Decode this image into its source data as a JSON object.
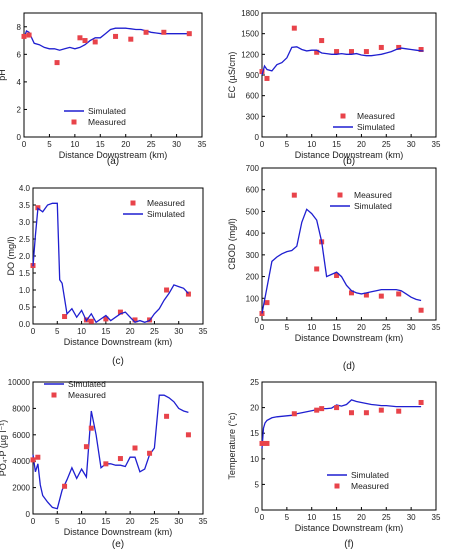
{
  "chart_data": [
    {
      "type": "line",
      "panel_label": "(a)",
      "xlabel": "Distance Downstream (km)",
      "ylabel": "pH",
      "xlim": [
        0,
        35
      ],
      "ylim": [
        0,
        9
      ],
      "xticks": [
        0,
        5,
        10,
        15,
        20,
        25,
        30,
        35
      ],
      "yticks": [
        0,
        2,
        4,
        6,
        8
      ],
      "legend_position": "bottom-left",
      "series": [
        {
          "name": "Simulated",
          "kind": "line",
          "x": [
            0,
            0.5,
            1,
            2,
            3,
            4,
            5,
            6,
            7,
            8,
            9,
            10,
            11,
            12,
            13,
            14,
            15,
            16,
            17,
            18,
            19,
            20,
            21,
            22,
            23,
            24,
            25,
            26,
            27,
            28,
            29,
            30,
            31,
            32,
            32.5
          ],
          "y": [
            7.2,
            7.7,
            7.6,
            6.8,
            6.7,
            6.5,
            6.4,
            6.4,
            6.3,
            6.4,
            6.5,
            6.4,
            6.5,
            6.7,
            7.0,
            7.2,
            7.2,
            7.5,
            7.8,
            7.9,
            7.9,
            7.9,
            7.85,
            7.8,
            7.8,
            7.7,
            7.6,
            7.55,
            7.5,
            7.5,
            7.5,
            7.5,
            7.5,
            7.5,
            7.5
          ]
        },
        {
          "name": "Measured",
          "kind": "marker",
          "x": [
            0,
            1,
            6.5,
            11,
            12,
            14,
            18,
            21,
            24,
            27.5,
            32.5
          ],
          "y": [
            7.3,
            7.4,
            5.4,
            7.2,
            7.0,
            6.9,
            7.3,
            7.1,
            7.6,
            7.6,
            7.5
          ]
        }
      ]
    },
    {
      "type": "line",
      "panel_label": "(b)",
      "xlabel": "Distance Downstream (km)",
      "ylabel": "EC (µS/cm)",
      "xlim": [
        0,
        35
      ],
      "ylim": [
        0,
        1800
      ],
      "xticks": [
        0,
        5,
        10,
        15,
        20,
        25,
        30,
        35
      ],
      "yticks": [
        0,
        300,
        600,
        900,
        1200,
        1500,
        1800
      ],
      "legend_position": "bottom",
      "series": [
        {
          "name": "Measured",
          "kind": "marker",
          "x": [
            0,
            1,
            6.5,
            11,
            12,
            15,
            18,
            21,
            24,
            27.5,
            32
          ],
          "y": [
            950,
            850,
            1580,
            1230,
            1400,
            1240,
            1240,
            1240,
            1300,
            1300,
            1270
          ]
        },
        {
          "name": "Simulated",
          "kind": "line",
          "x": [
            0,
            0.5,
            1,
            2,
            3,
            4,
            5,
            6,
            7,
            8,
            9,
            10,
            11,
            12,
            13,
            14,
            15,
            16,
            17,
            18,
            19,
            20,
            21,
            22,
            23,
            24,
            25,
            26,
            27,
            28,
            29,
            30,
            31,
            32,
            32.5
          ],
          "y": [
            900,
            1030,
            980,
            960,
            1050,
            1080,
            1150,
            1300,
            1310,
            1270,
            1250,
            1260,
            1260,
            1220,
            1210,
            1200,
            1200,
            1210,
            1200,
            1200,
            1210,
            1190,
            1180,
            1180,
            1190,
            1200,
            1220,
            1240,
            1270,
            1290,
            1280,
            1270,
            1260,
            1250,
            1250
          ]
        }
      ]
    },
    {
      "type": "line",
      "panel_label": "(c)",
      "xlabel": "Distance Downstream (km)",
      "ylabel": "DO (mg/l)",
      "xlim": [
        0,
        35
      ],
      "ylim": [
        0,
        4
      ],
      "xticks": [
        0,
        5,
        10,
        15,
        20,
        25,
        30,
        35
      ],
      "yticks": [
        0,
        0.5,
        1.0,
        1.5,
        2.0,
        2.5,
        3.0,
        3.5,
        4.0
      ],
      "ytick_labels": [
        "0.0",
        "0.5",
        "1.0",
        "1.5",
        "2.0",
        "2.5",
        "3.0",
        "3.5",
        "4.0"
      ],
      "legend_position": "top-right",
      "series": [
        {
          "name": "Measured",
          "kind": "marker",
          "x": [
            0,
            1,
            6.5,
            11,
            12,
            15,
            18,
            21,
            24,
            27.5,
            32
          ],
          "y": [
            1.72,
            3.42,
            0.22,
            0.12,
            0.08,
            0.15,
            0.35,
            0.12,
            0.12,
            1.0,
            0.88
          ]
        },
        {
          "name": "Simulated",
          "kind": "line",
          "x": [
            0,
            0.5,
            1,
            2,
            3,
            4,
            5,
            5.5,
            6,
            7,
            8,
            9,
            10,
            11,
            12,
            13,
            14,
            15,
            16,
            17,
            18,
            19,
            20,
            21,
            22,
            23,
            24,
            25,
            26,
            27,
            28,
            29,
            30,
            31,
            32
          ],
          "y": [
            1.7,
            2.6,
            3.4,
            3.3,
            3.5,
            3.55,
            3.55,
            1.3,
            1.2,
            0.3,
            0.45,
            0.2,
            0.4,
            0.1,
            0.3,
            0.05,
            0.15,
            0.25,
            0.1,
            0.2,
            0.3,
            0.35,
            0.2,
            0.05,
            0.1,
            0.05,
            0.1,
            0.3,
            0.45,
            0.7,
            0.9,
            1.15,
            1.1,
            1.05,
            0.9
          ]
        }
      ]
    },
    {
      "type": "line",
      "panel_label": "(d)",
      "xlabel": "Distance Downstream (km)",
      "ylabel": "CBOD (mg/l)",
      "xlim": [
        0,
        35
      ],
      "ylim": [
        0,
        700
      ],
      "xticks": [
        0,
        5,
        10,
        15,
        20,
        25,
        30,
        35
      ],
      "yticks": [
        0,
        100,
        200,
        300,
        400,
        500,
        600,
        700
      ],
      "legend_position": "top-right",
      "series": [
        {
          "name": "Measured",
          "kind": "marker",
          "x": [
            0,
            1,
            6.5,
            11,
            12,
            15,
            18,
            21,
            24,
            27.5,
            32
          ],
          "y": [
            30,
            80,
            575,
            235,
            360,
            205,
            125,
            115,
            110,
            120,
            45
          ]
        },
        {
          "name": "Simulated",
          "kind": "line",
          "x": [
            0,
            1,
            2,
            3,
            4,
            5,
            6,
            7,
            8,
            9,
            10,
            11,
            12,
            13,
            14,
            15,
            16,
            17,
            18,
            19,
            20,
            21,
            22,
            23,
            24,
            25,
            26,
            27,
            28,
            29,
            30,
            31,
            32
          ],
          "y": [
            30,
            150,
            270,
            290,
            305,
            315,
            320,
            340,
            450,
            510,
            490,
            460,
            360,
            200,
            210,
            220,
            200,
            160,
            135,
            125,
            120,
            125,
            130,
            135,
            140,
            140,
            140,
            140,
            135,
            120,
            105,
            95,
            90
          ]
        }
      ]
    },
    {
      "type": "line",
      "panel_label": "(e)",
      "xlabel": "Distance Downstream (km)",
      "ylabel": "PO₄-P (µg l⁻¹)",
      "xlim": [
        0,
        35
      ],
      "ylim": [
        0,
        10000
      ],
      "xticks": [
        0,
        5,
        10,
        15,
        20,
        25,
        30,
        35
      ],
      "yticks": [
        0,
        2000,
        4000,
        6000,
        8000,
        10000
      ],
      "legend_position": "top-left",
      "series": [
        {
          "name": "Simulated",
          "kind": "line",
          "x": [
            0,
            0.5,
            1,
            1.5,
            2,
            3,
            4,
            5,
            6,
            7,
            8,
            9,
            10,
            11,
            12,
            13,
            14,
            15,
            16,
            17,
            18,
            19,
            20,
            21,
            22,
            23,
            24,
            25,
            26,
            27,
            28,
            29,
            30,
            31,
            32
          ],
          "y": [
            4500,
            3200,
            3800,
            2200,
            1400,
            900,
            500,
            400,
            1800,
            2600,
            3500,
            2700,
            3400,
            2800,
            7800,
            6000,
            3500,
            3800,
            3800,
            3700,
            3700,
            3600,
            4300,
            4300,
            3200,
            3400,
            4500,
            5000,
            9000,
            9000,
            8800,
            8500,
            8000,
            7800,
            7700
          ]
        },
        {
          "name": "Measured",
          "kind": "marker",
          "x": [
            0,
            1,
            6.5,
            11,
            12,
            15,
            18,
            21,
            24,
            27.5,
            32
          ],
          "y": [
            4100,
            4300,
            2100,
            5100,
            6500,
            3800,
            4200,
            5000,
            4600,
            7400,
            6000
          ]
        }
      ]
    },
    {
      "type": "line",
      "panel_label": "(f)",
      "xlabel": "Distance Downstream (km)",
      "ylabel": "Temperature (°c)",
      "xlim": [
        0,
        35
      ],
      "ylim": [
        0,
        25
      ],
      "xticks": [
        0,
        5,
        10,
        15,
        20,
        25,
        30,
        35
      ],
      "yticks": [
        0,
        5,
        10,
        15,
        20,
        25
      ],
      "legend_position": "bottom-right",
      "series": [
        {
          "name": "Simulated",
          "kind": "line",
          "x": [
            0,
            0.3,
            0.6,
            1,
            2,
            3,
            4,
            5,
            6,
            7,
            8,
            9,
            10,
            11,
            12,
            13,
            14,
            15,
            16,
            17,
            18,
            19,
            20,
            21,
            22,
            23,
            24,
            25,
            26,
            27,
            28,
            29,
            30,
            31,
            32
          ],
          "y": [
            12,
            16,
            17,
            17.5,
            18,
            18.2,
            18.3,
            18.4,
            18.5,
            18.8,
            19.0,
            19.2,
            19.4,
            19.6,
            19.8,
            19.8,
            19.9,
            20.5,
            20.3,
            20.6,
            21.5,
            21.2,
            21.0,
            20.8,
            20.6,
            20.5,
            20.4,
            20.4,
            20.3,
            20.2,
            20.2,
            20.2,
            20.2,
            20.2,
            20.2
          ]
        },
        {
          "name": "Measured",
          "kind": "marker",
          "x": [
            0,
            1,
            6.5,
            11,
            12,
            15,
            18,
            21,
            24,
            27.5,
            32
          ],
          "y": [
            13,
            13,
            18.8,
            19.5,
            19.8,
            20.0,
            19.0,
            19.0,
            19.5,
            19.3,
            21.0
          ]
        }
      ]
    }
  ],
  "colors": {
    "line": "#1f1fd0",
    "marker": "#e8434a",
    "axis": "#000000",
    "text": "#222222"
  }
}
